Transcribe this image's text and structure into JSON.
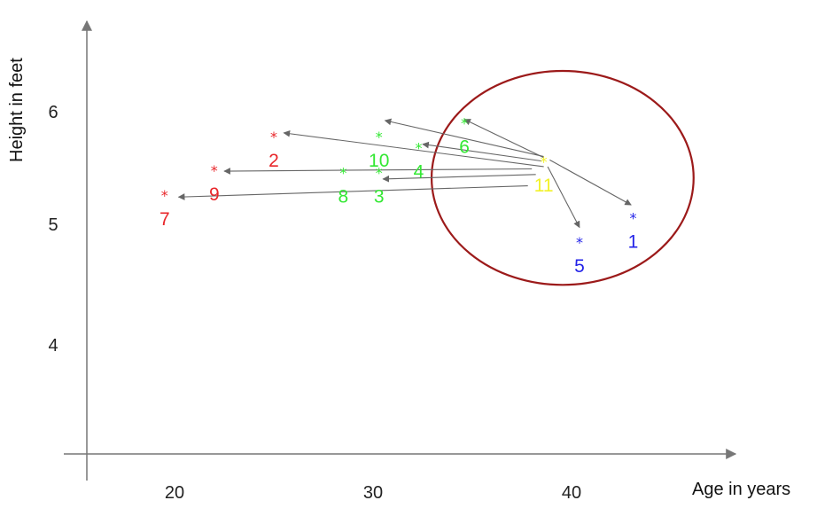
{
  "chart_data": {
    "type": "scatter",
    "title": "",
    "xlabel": "Age in years",
    "ylabel": "Height in feet",
    "x_ticks": [
      "20",
      "30",
      "40"
    ],
    "y_ticks": [
      "4",
      "5",
      "6"
    ],
    "xlim": [
      15.5,
      48.5
    ],
    "ylim": [
      3.05,
      6.75
    ],
    "grid": false,
    "legend": "none",
    "marker": "*",
    "colors": {
      "red": "#e8262a",
      "green": "#33e833",
      "blue": "#2323e8",
      "yellow": "#f2f22a",
      "arrow": "#666666",
      "circle": "#9c1a1a",
      "axis": "#777777"
    },
    "points": [
      {
        "label": "1",
        "x": 43.1,
        "y": 5.1,
        "color": "blue"
      },
      {
        "label": "2",
        "x": 25.0,
        "y": 5.82,
        "color": "red"
      },
      {
        "label": "3",
        "x": 30.3,
        "y": 5.5,
        "color": "green"
      },
      {
        "label": "4",
        "x": 32.3,
        "y": 5.72,
        "color": "green"
      },
      {
        "label": "5",
        "x": 40.4,
        "y": 4.88,
        "color": "blue"
      },
      {
        "label": "6",
        "x": 34.6,
        "y": 5.94,
        "color": "green"
      },
      {
        "label": "7",
        "x": 19.5,
        "y": 5.3,
        "color": "red"
      },
      {
        "label": "8",
        "x": 28.5,
        "y": 5.5,
        "color": "green"
      },
      {
        "label": "9",
        "x": 22.0,
        "y": 5.52,
        "color": "red"
      },
      {
        "label": "10",
        "x": 30.3,
        "y": 5.82,
        "color": "green"
      },
      {
        "label": "11",
        "x": 38.6,
        "y": 5.6,
        "color": "yellow"
      }
    ],
    "arrows": [
      {
        "from": [
          38.6,
          5.6
        ],
        "to": [
          34.6,
          5.94
        ]
      },
      {
        "from": [
          38.6,
          5.61
        ],
        "to": [
          30.6,
          5.93
        ]
      },
      {
        "from": [
          38.5,
          5.57
        ],
        "to": [
          32.5,
          5.72
        ]
      },
      {
        "from": [
          38.6,
          5.52
        ],
        "to": [
          25.5,
          5.82
        ]
      },
      {
        "from": [
          38.0,
          5.5
        ],
        "to": [
          22.5,
          5.48
        ]
      },
      {
        "from": [
          38.2,
          5.45
        ],
        "to": [
          30.5,
          5.41
        ]
      },
      {
        "from": [
          37.8,
          5.35
        ],
        "to": [
          20.2,
          5.25
        ]
      },
      {
        "from": [
          38.9,
          5.58
        ],
        "to": [
          43.0,
          5.18
        ]
      },
      {
        "from": [
          38.8,
          5.52
        ],
        "to": [
          40.4,
          4.98
        ]
      }
    ],
    "circle": {
      "cx": 39.55,
      "cy": 5.42,
      "rx": 6.6,
      "ry": 0.95
    }
  }
}
